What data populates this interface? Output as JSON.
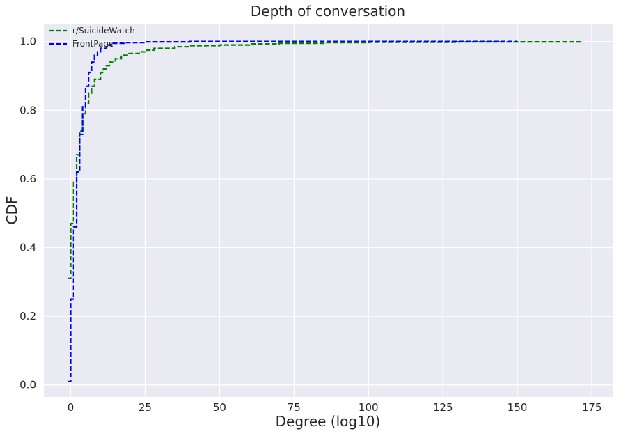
{
  "chart_data": {
    "type": "line",
    "step": true,
    "title": "Depth of conversation",
    "xlabel": "Degree (log10)",
    "ylabel": "CDF",
    "xlim": [
      -9,
      182
    ],
    "ylim": [
      -0.035,
      1.05
    ],
    "xticks": [
      0,
      25,
      50,
      75,
      100,
      125,
      150,
      175
    ],
    "yticks": [
      0.0,
      0.2,
      0.4,
      0.6,
      0.8,
      1.0
    ],
    "xtick_labels": [
      "0",
      "25",
      "50",
      "75",
      "100",
      "125",
      "150",
      "175"
    ],
    "ytick_labels": [
      "0.0",
      "0.2",
      "0.4",
      "0.6",
      "0.8",
      "1.0"
    ],
    "grid": true,
    "legend_position": "top-left",
    "series": [
      {
        "name": "r/SuicideWatch",
        "color": "#008000",
        "linestyle": "dashed",
        "points": [
          [
            -1,
            0.31
          ],
          [
            0,
            0.47
          ],
          [
            1,
            0.59
          ],
          [
            2,
            0.67
          ],
          [
            3,
            0.74
          ],
          [
            4,
            0.79
          ],
          [
            5,
            0.82
          ],
          [
            6,
            0.85
          ],
          [
            7,
            0.87
          ],
          [
            8,
            0.89
          ],
          [
            10,
            0.91
          ],
          [
            11,
            0.92
          ],
          [
            12,
            0.93
          ],
          [
            13,
            0.94
          ],
          [
            15,
            0.95
          ],
          [
            17,
            0.96
          ],
          [
            19,
            0.965
          ],
          [
            23,
            0.97
          ],
          [
            25,
            0.975
          ],
          [
            28,
            0.98
          ],
          [
            35,
            0.985
          ],
          [
            40,
            0.988
          ],
          [
            50,
            0.99
          ],
          [
            60,
            0.993
          ],
          [
            70,
            0.995
          ],
          [
            85,
            0.997
          ],
          [
            100,
            0.998
          ],
          [
            130,
            0.999
          ],
          [
            172,
            1.0
          ]
        ]
      },
      {
        "name": "FrontPage",
        "color": "#0000ff",
        "linestyle": "dashed",
        "points": [
          [
            -1,
            0.01
          ],
          [
            0,
            0.25
          ],
          [
            1,
            0.46
          ],
          [
            2,
            0.62
          ],
          [
            3,
            0.73
          ],
          [
            4,
            0.81
          ],
          [
            5,
            0.87
          ],
          [
            6,
            0.91
          ],
          [
            7,
            0.94
          ],
          [
            8,
            0.96
          ],
          [
            9,
            0.97
          ],
          [
            10,
            0.98
          ],
          [
            12,
            0.99
          ],
          [
            14,
            0.995
          ],
          [
            18,
            0.997
          ],
          [
            25,
            0.999
          ],
          [
            40,
            1.0
          ],
          [
            150,
            1.0
          ]
        ]
      }
    ]
  }
}
